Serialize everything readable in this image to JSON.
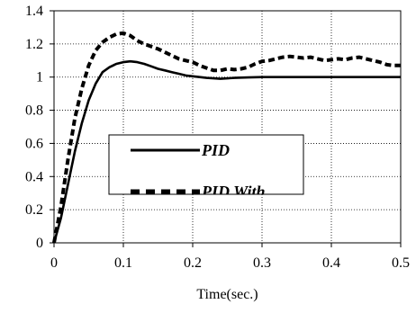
{
  "chart_data": {
    "type": "line",
    "title": "",
    "xlabel": "Time(sec.)",
    "ylabel": "",
    "xlim": [
      0,
      0.5
    ],
    "ylim": [
      0,
      1.4
    ],
    "x_ticks": [
      "0",
      "0.1",
      "0.2",
      "0.3",
      "0.4",
      "0.5"
    ],
    "y_ticks": [
      "0",
      "0.2",
      "0.4",
      "0.6",
      "0.8",
      "1",
      "1.2",
      "1.4"
    ],
    "grid": "dotted",
    "legend_position": "center-left",
    "series": [
      {
        "name": "PID",
        "style": "solid",
        "color": "#000000",
        "points": [
          [
            0,
            0
          ],
          [
            0.01,
            0.15
          ],
          [
            0.02,
            0.35
          ],
          [
            0.03,
            0.55
          ],
          [
            0.04,
            0.72
          ],
          [
            0.05,
            0.86
          ],
          [
            0.06,
            0.96
          ],
          [
            0.07,
            1.03
          ],
          [
            0.08,
            1.06
          ],
          [
            0.09,
            1.08
          ],
          [
            0.1,
            1.09
          ],
          [
            0.11,
            1.095
          ],
          [
            0.12,
            1.09
          ],
          [
            0.13,
            1.08
          ],
          [
            0.14,
            1.065
          ],
          [
            0.15,
            1.05
          ],
          [
            0.16,
            1.04
          ],
          [
            0.17,
            1.03
          ],
          [
            0.18,
            1.02
          ],
          [
            0.19,
            1.01
          ],
          [
            0.2,
            1.005
          ],
          [
            0.22,
            0.995
          ],
          [
            0.24,
            0.99
          ],
          [
            0.26,
            0.995
          ],
          [
            0.28,
            0.998
          ],
          [
            0.3,
            1.0
          ],
          [
            0.35,
            1.0
          ],
          [
            0.4,
            1.0
          ],
          [
            0.45,
            1.0
          ],
          [
            0.5,
            1.0
          ]
        ]
      },
      {
        "name": "PID With",
        "style": "dashed",
        "color": "#000000",
        "points": [
          [
            0,
            0
          ],
          [
            0.01,
            0.22
          ],
          [
            0.02,
            0.5
          ],
          [
            0.03,
            0.75
          ],
          [
            0.04,
            0.93
          ],
          [
            0.05,
            1.07
          ],
          [
            0.06,
            1.16
          ],
          [
            0.07,
            1.21
          ],
          [
            0.08,
            1.24
          ],
          [
            0.09,
            1.26
          ],
          [
            0.1,
            1.265
          ],
          [
            0.11,
            1.25
          ],
          [
            0.12,
            1.22
          ],
          [
            0.13,
            1.2
          ],
          [
            0.14,
            1.185
          ],
          [
            0.15,
            1.17
          ],
          [
            0.16,
            1.15
          ],
          [
            0.17,
            1.13
          ],
          [
            0.18,
            1.11
          ],
          [
            0.19,
            1.1
          ],
          [
            0.2,
            1.09
          ],
          [
            0.21,
            1.07
          ],
          [
            0.22,
            1.055
          ],
          [
            0.23,
            1.04
          ],
          [
            0.24,
            1.04
          ],
          [
            0.25,
            1.05
          ],
          [
            0.26,
            1.045
          ],
          [
            0.27,
            1.05
          ],
          [
            0.28,
            1.06
          ],
          [
            0.29,
            1.08
          ],
          [
            0.3,
            1.095
          ],
          [
            0.31,
            1.1
          ],
          [
            0.32,
            1.11
          ],
          [
            0.33,
            1.12
          ],
          [
            0.34,
            1.125
          ],
          [
            0.35,
            1.12
          ],
          [
            0.36,
            1.115
          ],
          [
            0.37,
            1.12
          ],
          [
            0.38,
            1.11
          ],
          [
            0.39,
            1.1
          ],
          [
            0.4,
            1.105
          ],
          [
            0.41,
            1.11
          ],
          [
            0.42,
            1.105
          ],
          [
            0.43,
            1.115
          ],
          [
            0.44,
            1.12
          ],
          [
            0.45,
            1.11
          ],
          [
            0.46,
            1.1
          ],
          [
            0.47,
            1.09
          ],
          [
            0.48,
            1.075
          ],
          [
            0.49,
            1.07
          ],
          [
            0.5,
            1.07
          ]
        ]
      }
    ]
  }
}
